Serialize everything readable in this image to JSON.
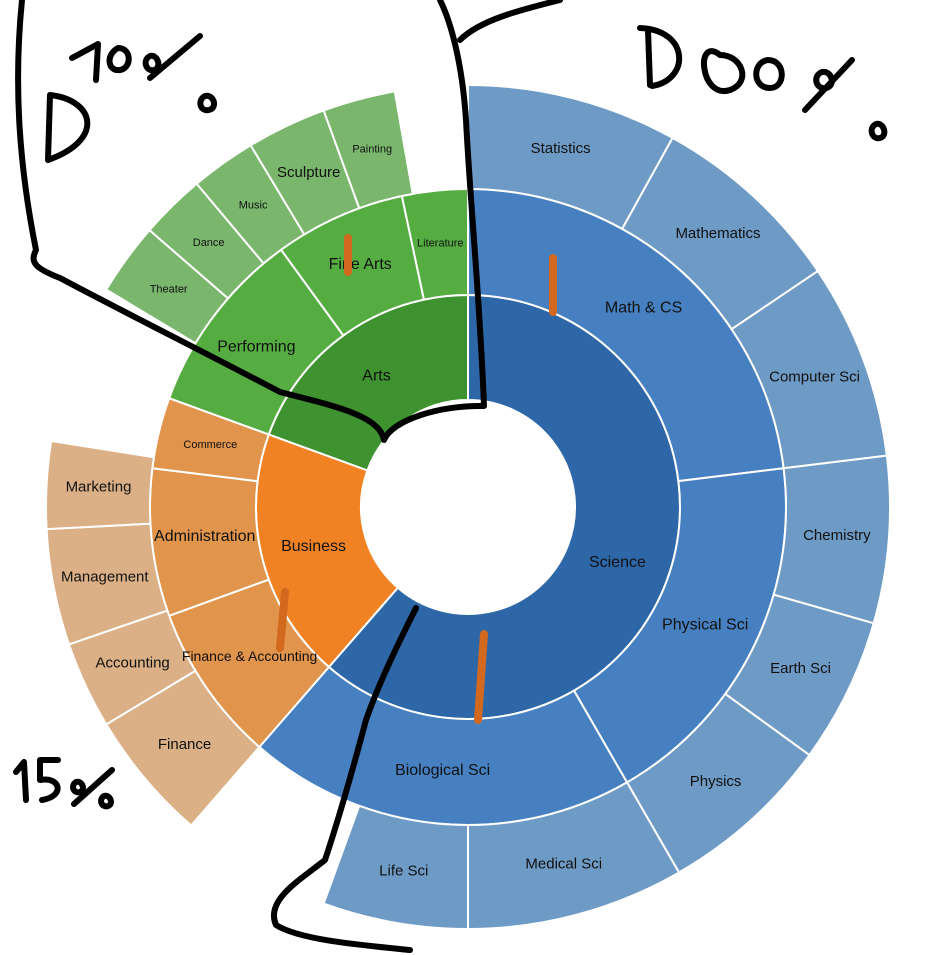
{
  "chart_data": {
    "type": "sunburst",
    "title": "",
    "center": [
      468,
      507
    ],
    "radii": [
      0,
      107,
      212,
      318,
      422
    ],
    "colors": {
      "Science": [
        "#2e67a8",
        "#4680c0",
        "#6e9bc6"
      ],
      "Arts": [
        "#3f9230",
        "#55ad41",
        "#7ab76d"
      ],
      "Business": [
        "#f08224",
        "#e0944c",
        "#dcb086"
      ]
    },
    "segments": [
      {
        "label": "Science",
        "depth": 1,
        "start": 0,
        "end": 221,
        "group": "Science"
      },
      {
        "label": "Business",
        "depth": 1,
        "start": 221,
        "end": 290,
        "group": "Business"
      },
      {
        "label": "Arts",
        "depth": 1,
        "start": 290,
        "end": 360,
        "group": "Arts"
      },
      {
        "label": "Math & CS",
        "depth": 2,
        "start": 0,
        "end": 83,
        "group": "Science"
      },
      {
        "label": "Physical Sci",
        "depth": 2,
        "start": 83,
        "end": 150,
        "group": "Science"
      },
      {
        "label": "Biological Sci",
        "depth": 2,
        "start": 150,
        "end": 221,
        "group": "Science"
      },
      {
        "label": "Finance & Accounting",
        "depth": 2,
        "start": 221,
        "end": 250,
        "group": "Business"
      },
      {
        "label": "Administration",
        "depth": 2,
        "start": 250,
        "end": 277,
        "group": "Business"
      },
      {
        "label": "Commerce",
        "depth": 2,
        "start": 277,
        "end": 290,
        "group": "Business"
      },
      {
        "label": "Performing",
        "depth": 2,
        "start": 290,
        "end": 324,
        "group": "Arts"
      },
      {
        "label": "Fine Arts",
        "depth": 2,
        "start": 324,
        "end": 348,
        "group": "Arts"
      },
      {
        "label": "Literature",
        "depth": 2,
        "start": 348,
        "end": 360,
        "group": "Arts"
      },
      {
        "label": "Statistics",
        "depth": 3,
        "start": 0,
        "end": 29,
        "group": "Science"
      },
      {
        "label": "Mathematics",
        "depth": 3,
        "start": 29,
        "end": 56,
        "group": "Science"
      },
      {
        "label": "Computer Sci",
        "depth": 3,
        "start": 56,
        "end": 83,
        "group": "Science"
      },
      {
        "label": "Chemistry",
        "depth": 3,
        "start": 83,
        "end": 106,
        "group": "Science"
      },
      {
        "label": "Earth Sci",
        "depth": 3,
        "start": 106,
        "end": 126,
        "group": "Science"
      },
      {
        "label": "Physics",
        "depth": 3,
        "start": 126,
        "end": 150,
        "group": "Science"
      },
      {
        "label": "Medical Sci",
        "depth": 3,
        "start": 150,
        "end": 180,
        "group": "Science"
      },
      {
        "label": "Life Sci",
        "depth": 3,
        "start": 180,
        "end": 200,
        "group": "Science"
      },
      {
        "label": "Finance",
        "depth": 3,
        "start": 221,
        "end": 239,
        "group": "Business"
      },
      {
        "label": "Accounting",
        "depth": 3,
        "start": 239,
        "end": 251,
        "group": "Business"
      },
      {
        "label": "Management",
        "depth": 3,
        "start": 251,
        "end": 267,
        "group": "Business"
      },
      {
        "label": "Marketing",
        "depth": 3,
        "start": 267,
        "end": 279,
        "group": "Business"
      },
      {
        "label": "Theater",
        "depth": 3,
        "start": 301,
        "end": 311,
        "group": "Arts"
      },
      {
        "label": "Dance",
        "depth": 3,
        "start": 311,
        "end": 320,
        "group": "Arts"
      },
      {
        "label": "Music",
        "depth": 3,
        "start": 320,
        "end": 329,
        "group": "Arts"
      },
      {
        "label": "Sculpture",
        "depth": 3,
        "start": 329,
        "end": 340,
        "group": "Arts"
      },
      {
        "label": "Painting",
        "depth": 3,
        "start": 340,
        "end": 350,
        "group": "Arts"
      }
    ]
  },
  "annotations": {
    "top_left": "D 10%",
    "top_right": "D 80%",
    "bottom_left": "15%"
  }
}
